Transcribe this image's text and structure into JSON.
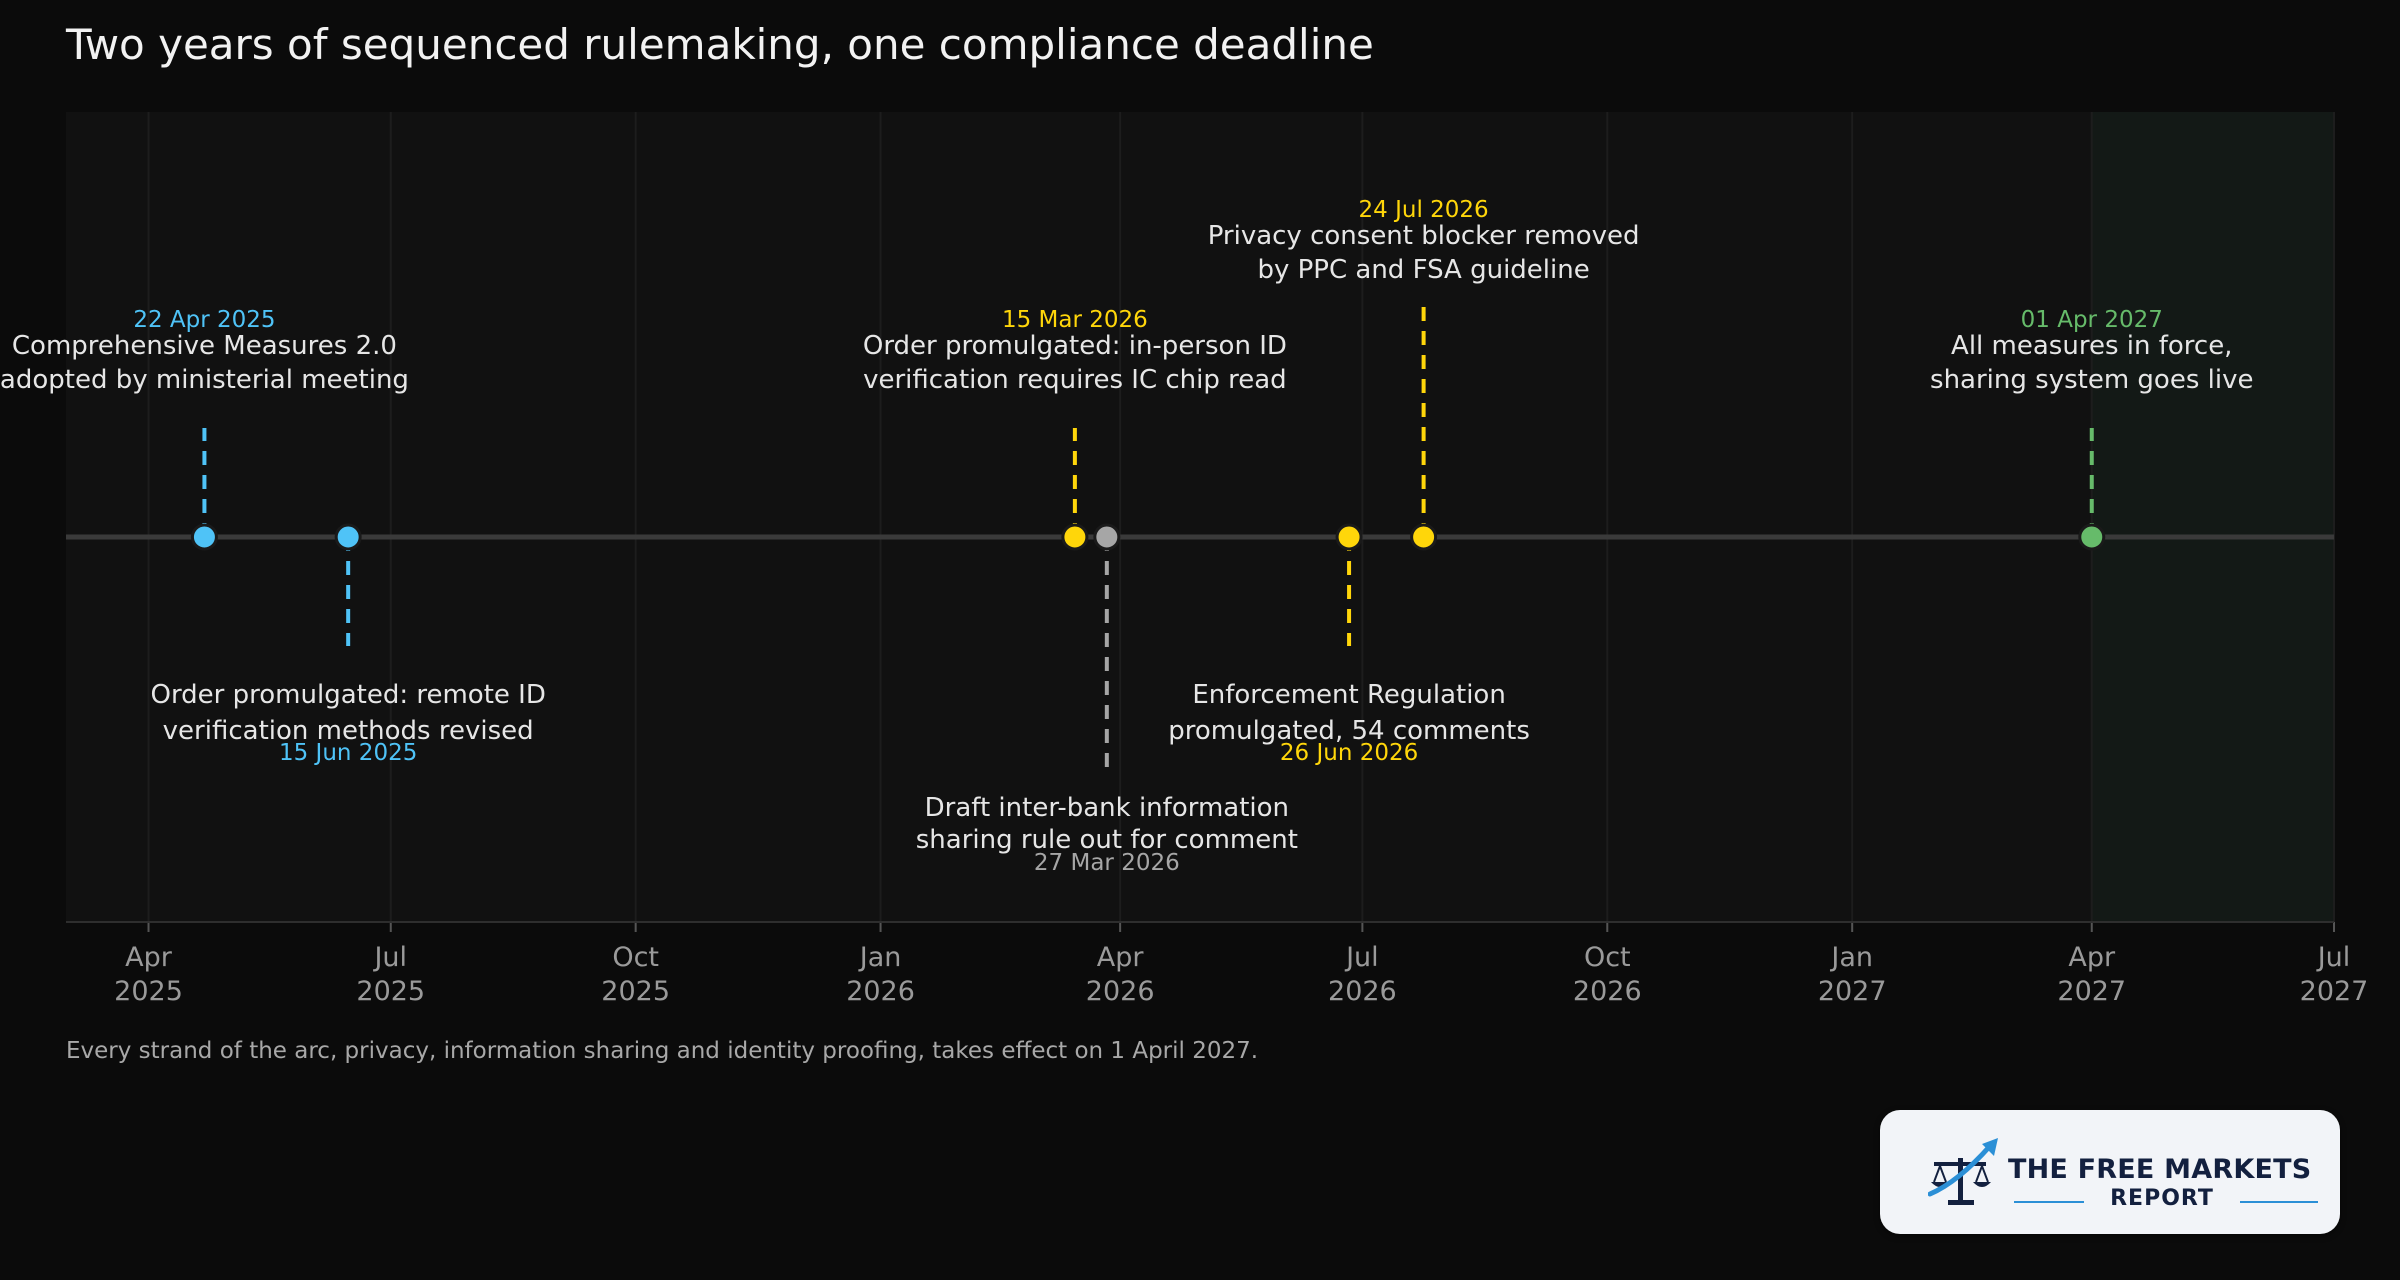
{
  "page": {
    "title": "Two years of sequenced rulemaking, one compliance deadline",
    "footnote": "Every strand of the arc, privacy, information sharing and identity proofing, takes effect on 1 April 2027."
  },
  "logo": {
    "line1": "THE FREE MARKETS",
    "line2": "REPORT"
  },
  "colors": {
    "background": "#0b0b0b",
    "plot_area": "#111111",
    "highlight_band": "#131916",
    "axis_line": "#3a3a3a",
    "blue": "#4fc3f7",
    "yellow": "#ffd60a",
    "gray": "#a6a6a6",
    "green": "#66bb6a",
    "label_text": "#e6e6e6",
    "tick_text": "#9a9a9a"
  },
  "chart_data": {
    "type": "timeline",
    "title": "Two years of sequenced rulemaking, one compliance deadline",
    "x_range": [
      "2025-03-01",
      "2027-07-01"
    ],
    "highlight_range": [
      "2027-04-01",
      "2027-07-01"
    ],
    "grid": true,
    "ticks": [
      {
        "date": "2025-04-01",
        "line1": "Apr",
        "line2": "2025"
      },
      {
        "date": "2025-07-01",
        "line1": "Jul",
        "line2": "2025"
      },
      {
        "date": "2025-10-01",
        "line1": "Oct",
        "line2": "2025"
      },
      {
        "date": "2026-01-01",
        "line1": "Jan",
        "line2": "2026"
      },
      {
        "date": "2026-04-01",
        "line1": "Apr",
        "line2": "2026"
      },
      {
        "date": "2026-07-01",
        "line1": "Jul",
        "line2": "2026"
      },
      {
        "date": "2026-10-01",
        "line1": "Oct",
        "line2": "2026"
      },
      {
        "date": "2027-01-01",
        "line1": "Jan",
        "line2": "2027"
      },
      {
        "date": "2027-04-01",
        "line1": "Apr",
        "line2": "2027"
      },
      {
        "date": "2027-07-01",
        "line1": "Jul",
        "line2": "2027"
      }
    ],
    "events": [
      {
        "date": "2025-04-22",
        "date_label": "22 Apr 2025",
        "text_lines": [
          "Comprehensive Measures 2.0",
          "adopted by ministerial meeting"
        ],
        "color": "blue",
        "side": "above",
        "stem": "short"
      },
      {
        "date": "2025-06-15",
        "date_label": "15 Jun 2025",
        "text_lines": [
          "Order promulgated: remote ID",
          "verification methods revised"
        ],
        "color": "blue",
        "side": "below",
        "stem": "short"
      },
      {
        "date": "2026-03-15",
        "date_label": "15 Mar 2026",
        "text_lines": [
          "Order promulgated: in-person ID",
          "verification requires IC chip read"
        ],
        "color": "yellow",
        "side": "above",
        "stem": "short"
      },
      {
        "date": "2026-03-27",
        "date_label": "27 Mar 2026",
        "text_lines": [
          "Draft inter-bank information",
          "sharing rule out for comment"
        ],
        "color": "gray",
        "side": "below",
        "stem": "long"
      },
      {
        "date": "2026-06-26",
        "date_label": "26 Jun 2026",
        "text_lines": [
          "Enforcement Regulation",
          "promulgated, 54 comments"
        ],
        "color": "yellow",
        "side": "below",
        "stem": "short"
      },
      {
        "date": "2026-07-24",
        "date_label": "24 Jul 2026",
        "text_lines": [
          "Privacy consent blocker removed",
          "by PPC and FSA guideline"
        ],
        "color": "yellow",
        "side": "above",
        "stem": "long"
      },
      {
        "date": "2027-04-01",
        "date_label": "01 Apr 2027",
        "text_lines": [
          "All measures in force,",
          "sharing system goes live"
        ],
        "color": "green",
        "side": "above",
        "stem": "short"
      }
    ]
  }
}
